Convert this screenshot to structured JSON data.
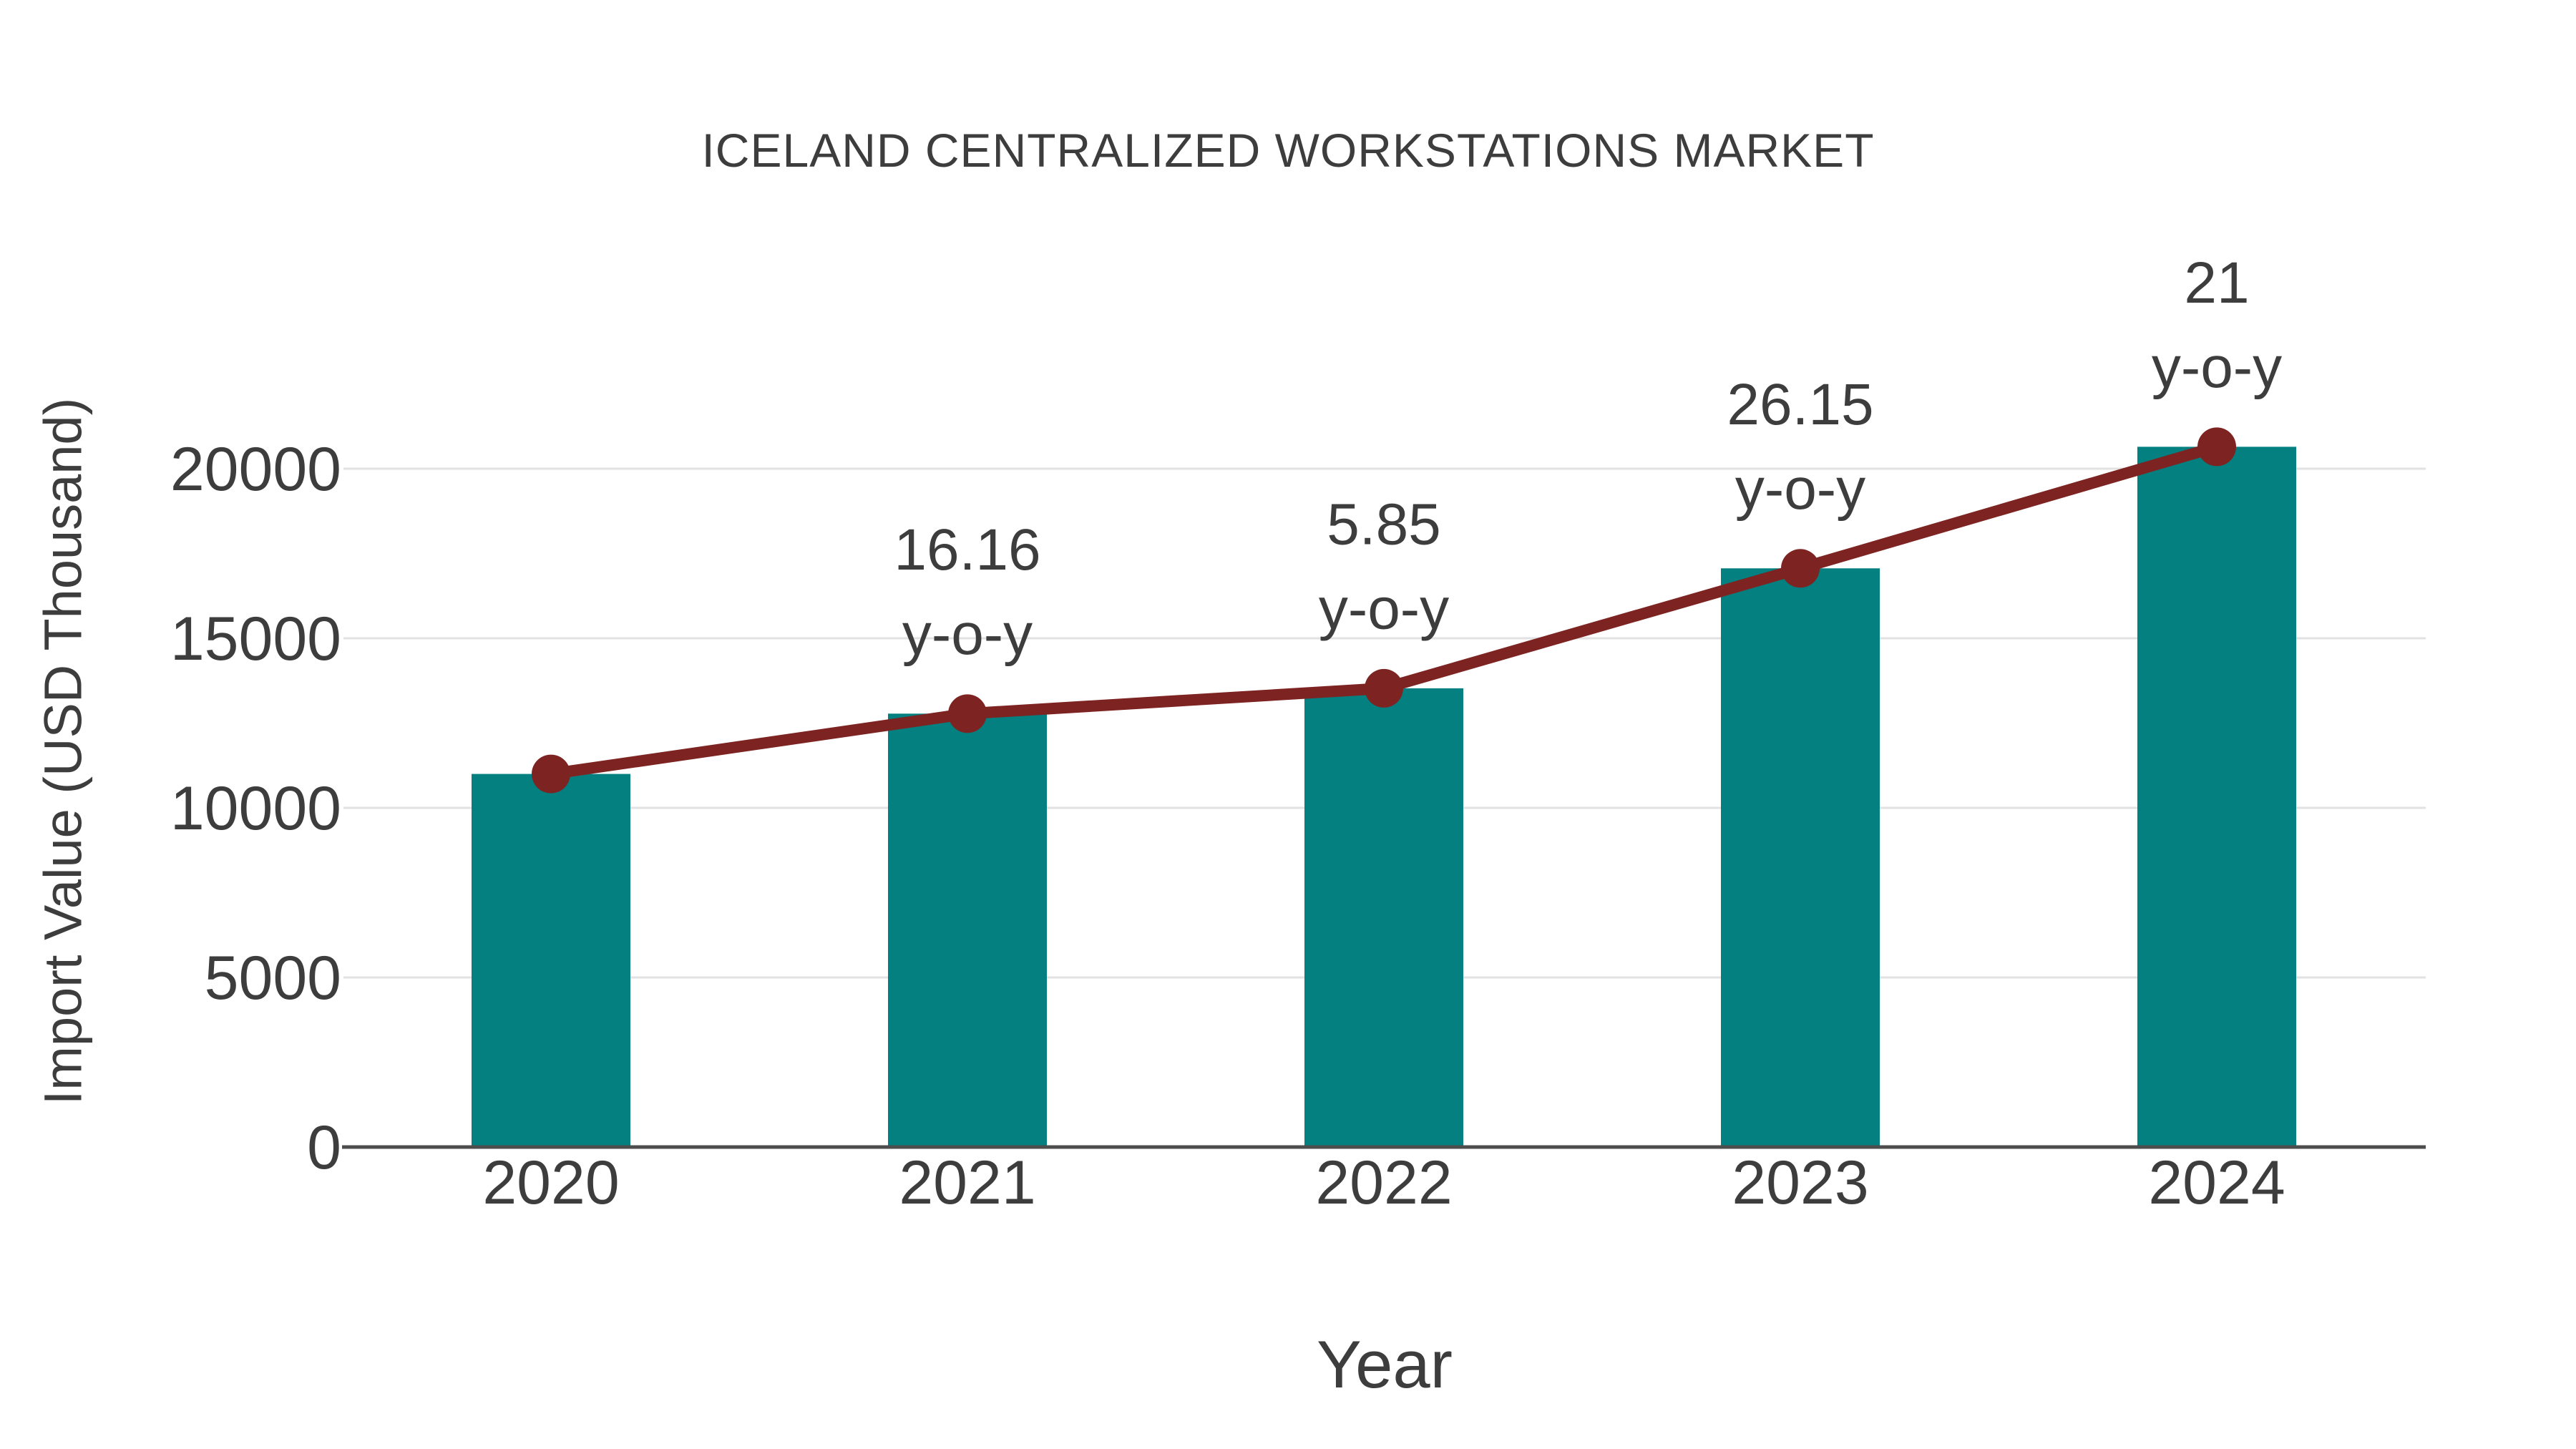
{
  "title": "ICELAND CENTRALIZED WORKSTATIONS MARKET",
  "chart_data": {
    "type": "bar",
    "title": "ICELAND CENTRALIZED WORKSTATIONS MARKET",
    "xlabel": "Year",
    "ylabel": "Import Value (USD Thousand)",
    "categories": [
      "2020",
      "2021",
      "2022",
      "2023",
      "2024"
    ],
    "series": [
      {
        "name": "Import Value bars",
        "type": "bar",
        "values": [
          11000,
          12778,
          13525,
          17062,
          20646
        ]
      },
      {
        "name": "Import Value trend line",
        "type": "line",
        "values": [
          11000,
          12778,
          13525,
          17062,
          20646
        ]
      }
    ],
    "annotations": [
      {
        "category": "2021",
        "line1": "16.16",
        "line2": "y-o-y"
      },
      {
        "category": "2022",
        "line1": "5.85",
        "line2": "y-o-y"
      },
      {
        "category": "2023",
        "line1": "26.15",
        "line2": "y-o-y"
      },
      {
        "category": "2024",
        "line1": "21",
        "line2": "y-o-y"
      }
    ],
    "yticks": [
      0,
      5000,
      10000,
      15000,
      20000
    ],
    "ylim": [
      0,
      22500
    ],
    "grid": true,
    "legend_position": "none"
  },
  "colors": {
    "bar": "#048080",
    "line": "#7d2422",
    "marker": "#7d2422",
    "grid": "#e2e2e2",
    "axis": "#4d4d4d",
    "text": "#3d3d3d",
    "background": "#ffffff"
  }
}
